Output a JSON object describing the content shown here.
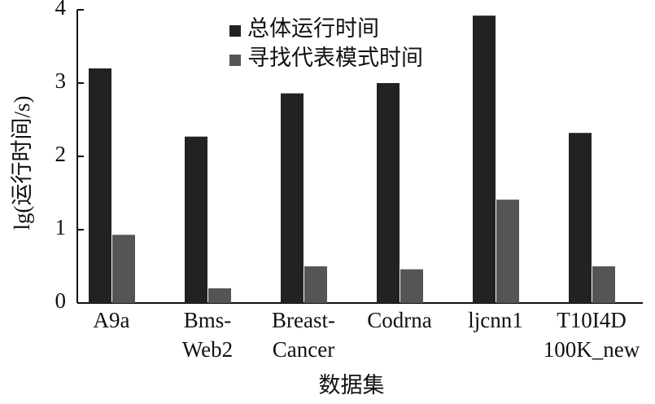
{
  "chart_data": {
    "type": "bar",
    "categories": [
      "A9a",
      "Bms-\nWeb2",
      "Breast-\nCancer",
      "Codrna",
      "ljcnn1",
      "T10I4D\n100K_new"
    ],
    "series": [
      {
        "name": "总体运行时间",
        "color": "#222222",
        "values": [
          3.2,
          2.27,
          2.86,
          3.0,
          3.92,
          2.32
        ]
      },
      {
        "name": "寻找代表模式时间",
        "color": "#555555",
        "values": [
          0.93,
          0.2,
          0.5,
          0.46,
          1.41,
          0.5
        ]
      }
    ],
    "x_label": "数据集",
    "y_label": "lg(运行时间/s)",
    "ylim": [
      0,
      4
    ],
    "yticks": [
      0,
      1,
      2,
      3,
      4
    ],
    "grid": false,
    "legend": "top"
  }
}
